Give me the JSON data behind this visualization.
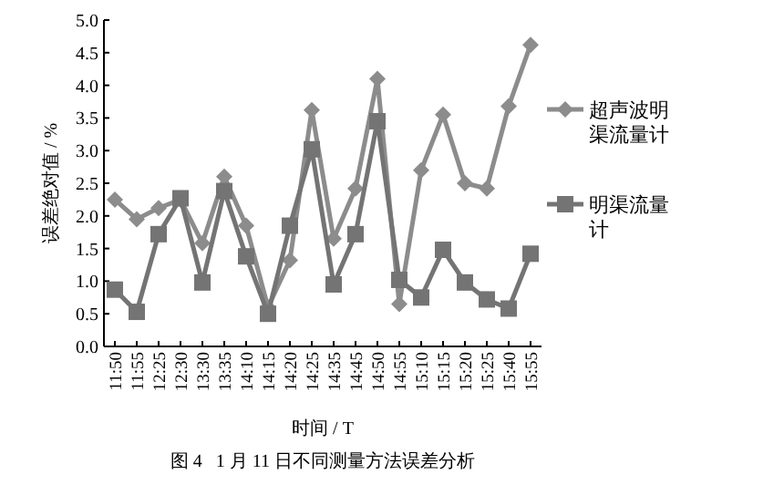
{
  "chart_data": {
    "type": "line",
    "title": "图 4   1 月 11 日不同测量方法误差分析",
    "xlabel": "时间 / T",
    "ylabel": "误差绝对值 / %",
    "categories": [
      "11:50",
      "11:55",
      "12:25",
      "12:30",
      "13:30",
      "13:35",
      "14:10",
      "14:15",
      "14:20",
      "14:25",
      "14:35",
      "14:45",
      "14:50",
      "14:55",
      "15:10",
      "15:15",
      "15:20",
      "15:25",
      "15:40",
      "15:55"
    ],
    "series": [
      {
        "name": "超声波明渠流量计",
        "color": "#8c8c8c",
        "marker": "diamond",
        "values": [
          2.25,
          1.95,
          2.12,
          2.25,
          1.58,
          2.6,
          1.85,
          0.6,
          1.32,
          3.62,
          1.65,
          2.42,
          4.1,
          0.65,
          2.7,
          3.55,
          2.5,
          2.42,
          3.68,
          4.62
        ]
      },
      {
        "name": "明渠流量计",
        "color": "#747474",
        "marker": "square",
        "values": [
          0.87,
          0.53,
          1.72,
          2.27,
          0.98,
          2.38,
          1.38,
          0.5,
          1.85,
          3.02,
          0.95,
          1.72,
          3.45,
          1.02,
          0.75,
          1.48,
          0.98,
          0.72,
          0.58,
          1.42
        ]
      }
    ],
    "ylim": [
      0,
      5
    ],
    "yticks": [
      {
        "value": 0,
        "label": "0.0"
      },
      {
        "value": 0.5,
        "label": "0.5"
      },
      {
        "value": 1,
        "label": "1.0"
      },
      {
        "value": 1.5,
        "label": "1.5"
      },
      {
        "value": 2,
        "label": "2.0"
      },
      {
        "value": 2.5,
        "label": "2.5"
      },
      {
        "value": 3,
        "label": "3.0"
      },
      {
        "value": 3.5,
        "label": "3.5"
      },
      {
        "value": 4,
        "label": "4.0"
      },
      {
        "value": 4.5,
        "label": "4.5"
      },
      {
        "value": 5,
        "label": "5.0"
      }
    ],
    "legend": "right",
    "grid": false,
    "line_style": "solid"
  }
}
